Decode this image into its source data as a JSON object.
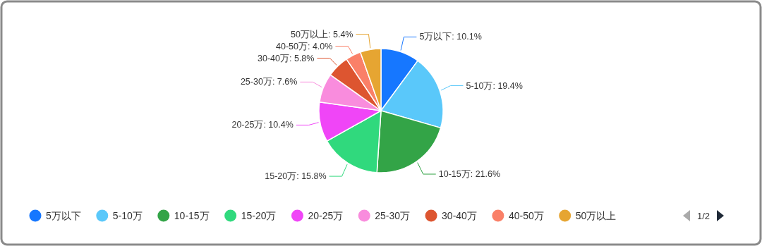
{
  "chart_data": {
    "type": "pie",
    "categories": [
      "5万以下",
      "5-10万",
      "10-15万",
      "15-20万",
      "20-25万",
      "25-30万",
      "30-40万",
      "40-50万",
      "50万以上"
    ],
    "values": [
      10.1,
      19.4,
      21.6,
      15.8,
      10.4,
      7.6,
      5.8,
      4.0,
      5.4
    ],
    "colors": [
      "#1677ff",
      "#5ac8fa",
      "#33a447",
      "#30d97d",
      "#f045f7",
      "#f98cdd",
      "#dd5530",
      "#fa8068",
      "#e6a532"
    ],
    "value_labels": [
      "5万以下: 10.1%",
      "5-10万: 19.4%",
      "10-15万: 21.6%",
      "15-20万: 15.8%",
      "20-25万: 10.4%",
      "25-30万: 7.6%",
      "30-40万: 5.8%",
      "40-50万: 4.0%",
      "50万以上: 5.4%"
    ],
    "legend": "bottom",
    "annotations": [
      "1/2"
    ]
  }
}
